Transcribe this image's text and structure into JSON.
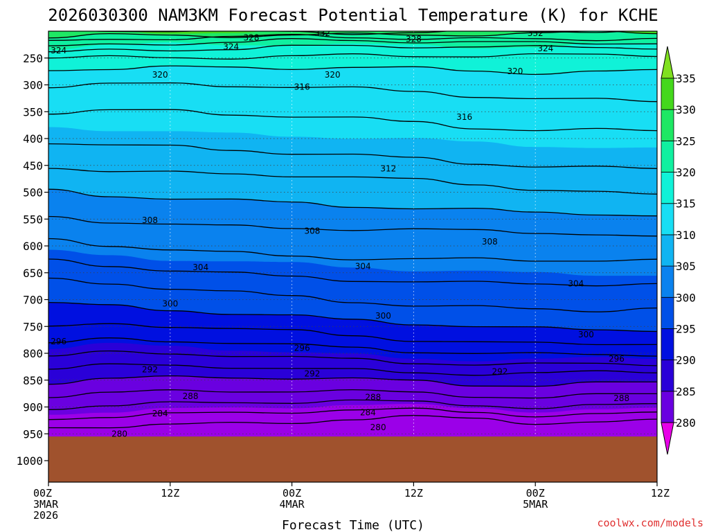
{
  "chart_data": {
    "type": "heatmap",
    "title": "2026030300 NAM3KM Forecast Potential Temperature (K) for KCHE",
    "xlabel": "Forecast Time (UTC)",
    "ylabel": "",
    "credit": "coolwx.com/models",
    "credit_color": "#e03030",
    "ground_color": "#a0522d",
    "surface_pressure_hpa": 955,
    "ylim": [
      1040,
      200
    ],
    "xlim_hours": [
      0,
      60
    ],
    "y_ticks": [
      "250",
      "300",
      "350",
      "400",
      "450",
      "500",
      "550",
      "600",
      "650",
      "700",
      "750",
      "800",
      "850",
      "900",
      "950",
      "1000"
    ],
    "y_tick_values": [
      250,
      300,
      350,
      400,
      450,
      500,
      550,
      600,
      650,
      700,
      750,
      800,
      850,
      900,
      950,
      1000
    ],
    "x_ticks": [
      {
        "hour": 0,
        "line1": "00Z",
        "line2": "3MAR",
        "line3": "2026"
      },
      {
        "hour": 12,
        "line1": "12Z",
        "line2": "",
        "line3": ""
      },
      {
        "hour": 24,
        "line1": "00Z",
        "line2": "4MAR",
        "line3": ""
      },
      {
        "hour": 36,
        "line1": "12Z",
        "line2": "",
        "line3": ""
      },
      {
        "hour": 48,
        "line1": "00Z",
        "line2": "5MAR",
        "line3": ""
      },
      {
        "hour": 60,
        "line1": "12Z",
        "line2": "",
        "line3": ""
      }
    ],
    "colorbar": {
      "levels": [
        280,
        285,
        290,
        295,
        300,
        305,
        310,
        315,
        320,
        325,
        330,
        335
      ],
      "labels": [
        "280",
        "285",
        "290",
        "295",
        "300",
        "305",
        "310",
        "315",
        "320",
        "325",
        "330",
        "335"
      ],
      "colors": [
        "#9b00e8",
        "#6a00e0",
        "#2a00d8",
        "#0010e0",
        "#0050e8",
        "#0a82ee",
        "#10b4f2",
        "#18def4",
        "#10f2d8",
        "#10f0a0",
        "#1ee864",
        "#44d81c"
      ],
      "low_color": "#e800e8",
      "high_color": "#80e020"
    },
    "level_profile": {
      "hours": [
        0,
        6,
        12,
        18,
        24,
        30,
        36,
        42,
        48,
        54,
        60
      ],
      "contour_interval_K": 2,
      "contours": [
        {
          "theta": 280,
          "p": [
            948,
            946,
            945,
            944,
            943,
            938,
            935,
            936,
            942,
            940,
            937
          ]
        },
        {
          "theta": 282,
          "p": [
            935,
            933,
            932,
            930,
            928,
            924,
            922,
            924,
            930,
            928,
            925
          ]
        },
        {
          "theta": 284,
          "p": [
            918,
            916,
            914,
            912,
            910,
            908,
            908,
            910,
            914,
            912,
            910
          ]
        },
        {
          "theta": 286,
          "p": [
            900,
            898,
            896,
            894,
            892,
            890,
            892,
            894,
            898,
            896,
            894
          ]
        },
        {
          "theta": 288,
          "p": [
            880,
            876,
            874,
            872,
            870,
            870,
            872,
            876,
            880,
            878,
            876
          ]
        },
        {
          "theta": 290,
          "p": [
            855,
            850,
            848,
            846,
            846,
            848,
            850,
            855,
            858,
            856,
            854
          ]
        },
        {
          "theta": 292,
          "p": [
            830,
            824,
            822,
            822,
            826,
            830,
            834,
            838,
            840,
            838,
            836
          ]
        },
        {
          "theta": 294,
          "p": [
            805,
            798,
            798,
            800,
            806,
            812,
            818,
            822,
            824,
            822,
            820
          ]
        },
        {
          "theta": 296,
          "p": [
            780,
            772,
            774,
            778,
            786,
            792,
            798,
            802,
            804,
            802,
            800
          ]
        },
        {
          "theta": 298,
          "p": [
            750,
            745,
            748,
            754,
            762,
            770,
            776,
            780,
            782,
            780,
            778
          ]
        },
        {
          "theta": 300,
          "p": [
            705,
            710,
            716,
            724,
            732,
            740,
            746,
            752,
            756,
            756,
            754
          ]
        },
        {
          "theta": 302,
          "p": [
            665,
            672,
            680,
            688,
            696,
            702,
            708,
            712,
            716,
            718,
            716
          ]
        },
        {
          "theta": 304,
          "p": [
            630,
            638,
            646,
            652,
            656,
            660,
            664,
            668,
            670,
            672,
            674
          ]
        },
        {
          "theta": 306,
          "p": [
            590,
            598,
            606,
            612,
            616,
            620,
            624,
            626,
            628,
            628,
            630
          ]
        },
        {
          "theta": 308,
          "p": [
            545,
            552,
            558,
            562,
            564,
            568,
            572,
            574,
            576,
            580,
            586
          ]
        },
        {
          "theta": 310,
          "p": [
            500,
            508,
            512,
            516,
            518,
            522,
            528,
            532,
            536,
            540,
            548
          ]
        },
        {
          "theta": 312,
          "p": [
            450,
            458,
            464,
            468,
            470,
            474,
            480,
            486,
            492,
            498,
            504
          ]
        },
        {
          "theta": 314,
          "p": [
            405,
            412,
            418,
            424,
            428,
            432,
            438,
            444,
            448,
            452,
            456
          ]
        },
        {
          "theta": 316,
          "p": [
            352,
            350,
            352,
            356,
            358,
            362,
            368,
            376,
            382,
            384,
            386
          ]
        },
        {
          "theta": 318,
          "p": [
            305,
            302,
            300,
            300,
            302,
            305,
            310,
            318,
            326,
            330,
            332
          ]
        },
        {
          "theta": 320,
          "p": [
            268,
            268,
            268,
            269,
            270,
            270,
            272,
            274,
            276,
            274,
            272
          ]
        },
        {
          "theta": 322,
          "p": [
            250,
            248,
            246,
            246,
            246,
            245,
            246,
            248,
            248,
            246,
            244
          ]
        },
        {
          "theta": 324,
          "p": [
            238,
            234,
            232,
            231,
            230,
            230,
            230,
            231,
            232,
            230,
            228
          ]
        },
        {
          "theta": 326,
          "p": [
            228,
            224,
            222,
            221,
            220,
            220,
            220,
            221,
            222,
            220,
            218
          ]
        },
        {
          "theta": 328,
          "p": [
            220,
            216,
            214,
            213,
            212,
            212,
            212,
            213,
            214,
            212,
            210
          ]
        },
        {
          "theta": 330,
          "p": [
            213,
            209,
            207,
            206,
            205,
            205,
            205,
            206,
            207,
            205,
            204
          ]
        },
        {
          "theta": 332,
          "p": [
            207,
            204,
            202,
            201,
            201,
            201,
            201,
            202,
            202,
            201,
            200
          ]
        }
      ]
    },
    "contour_labels": [
      {
        "text": "280",
        "hour": 7,
        "p": 950
      },
      {
        "text": "280",
        "hour": 32.5,
        "p": 938
      },
      {
        "text": "284",
        "hour": 11,
        "p": 912
      },
      {
        "text": "284",
        "hour": 31.5,
        "p": 910
      },
      {
        "text": "288",
        "hour": 14,
        "p": 880
      },
      {
        "text": "288",
        "hour": 32,
        "p": 882
      },
      {
        "text": "288",
        "hour": 56.5,
        "p": 884
      },
      {
        "text": "292",
        "hour": 10,
        "p": 830
      },
      {
        "text": "292",
        "hour": 26,
        "p": 838
      },
      {
        "text": "292",
        "hour": 44.5,
        "p": 834
      },
      {
        "text": "296",
        "hour": 1,
        "p": 778
      },
      {
        "text": "296",
        "hour": 25,
        "p": 790
      },
      {
        "text": "296",
        "hour": 56,
        "p": 810
      },
      {
        "text": "300",
        "hour": 12,
        "p": 708
      },
      {
        "text": "300",
        "hour": 33,
        "p": 730
      },
      {
        "text": "300",
        "hour": 53,
        "p": 765
      },
      {
        "text": "304",
        "hour": 15,
        "p": 640
      },
      {
        "text": "304",
        "hour": 31,
        "p": 638
      },
      {
        "text": "304",
        "hour": 52,
        "p": 670
      },
      {
        "text": "308",
        "hour": 10,
        "p": 552
      },
      {
        "text": "308",
        "hour": 26,
        "p": 572
      },
      {
        "text": "308",
        "hour": 43.5,
        "p": 592
      },
      {
        "text": "312",
        "hour": 33.5,
        "p": 456
      },
      {
        "text": "316",
        "hour": 25,
        "p": 304
      },
      {
        "text": "316",
        "hour": 41,
        "p": 360
      },
      {
        "text": "320",
        "hour": 11,
        "p": 281
      },
      {
        "text": "320",
        "hour": 28,
        "p": 281
      },
      {
        "text": "320",
        "hour": 46,
        "p": 275
      },
      {
        "text": "324",
        "hour": 1,
        "p": 236
      },
      {
        "text": "324",
        "hour": 18,
        "p": 229
      },
      {
        "text": "324",
        "hour": 49,
        "p": 232
      },
      {
        "text": "328",
        "hour": 20,
        "p": 212
      },
      {
        "text": "328",
        "hour": 36,
        "p": 215
      },
      {
        "text": "332",
        "hour": 27,
        "p": 204
      },
      {
        "text": "332",
        "hour": 48,
        "p": 204
      }
    ]
  }
}
